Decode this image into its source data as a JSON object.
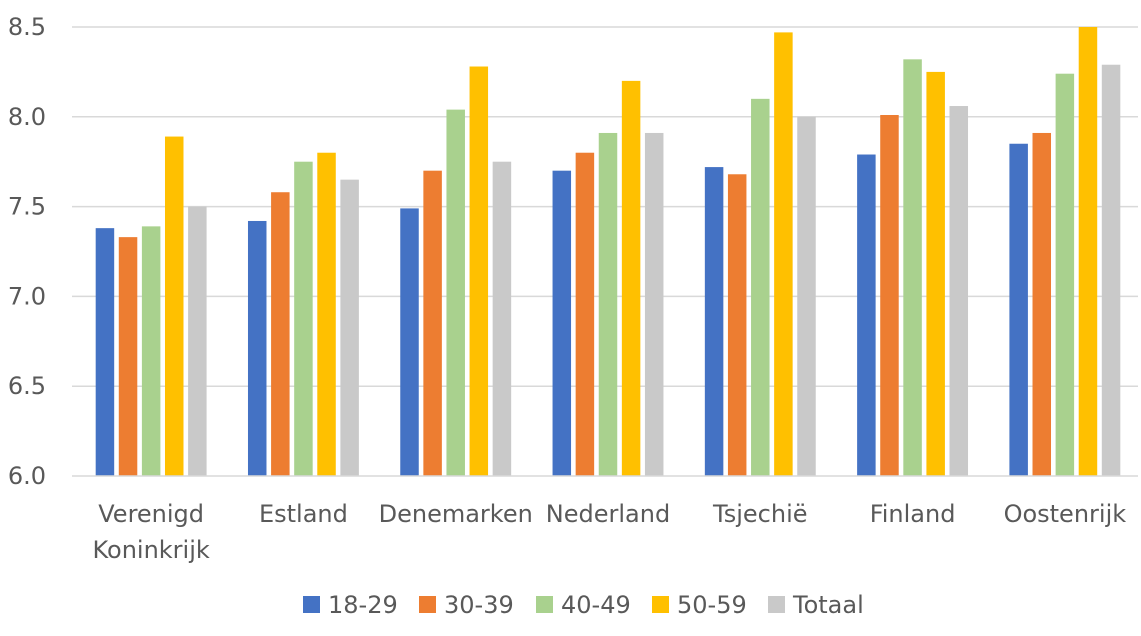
{
  "chart_data": {
    "type": "bar",
    "title": "",
    "xlabel": "",
    "ylabel": "",
    "ylim": [
      6.0,
      8.5
    ],
    "yticks": [
      "6.0",
      "6.5",
      "7.0",
      "7.5",
      "8.0",
      "8.5"
    ],
    "grid": true,
    "legend_position": "bottom",
    "categories": [
      [
        "Verenigd",
        "Koninkrijk"
      ],
      [
        "Estland"
      ],
      [
        "Denemarken"
      ],
      [
        "Nederland"
      ],
      [
        "Tsjechië"
      ],
      [
        "Finland"
      ],
      [
        "Oostenrijk"
      ]
    ],
    "series": [
      {
        "name": "18-29",
        "color": "#4472C4",
        "values": [
          7.38,
          7.42,
          7.49,
          7.7,
          7.72,
          7.79,
          7.85
        ]
      },
      {
        "name": "30-39",
        "color": "#ED7D31",
        "values": [
          7.33,
          7.58,
          7.7,
          7.8,
          7.68,
          8.01,
          7.91
        ]
      },
      {
        "name": "40-49",
        "color": "#A9D18E",
        "values": [
          7.39,
          7.75,
          8.04,
          7.91,
          8.1,
          8.32,
          8.24
        ]
      },
      {
        "name": "50-59",
        "color": "#FFC000",
        "values": [
          7.89,
          7.8,
          8.28,
          8.2,
          8.47,
          8.25,
          8.5
        ]
      },
      {
        "name": "Totaal",
        "color": "#C9C9C9",
        "values": [
          7.5,
          7.65,
          7.75,
          7.91,
          8.0,
          8.06,
          8.29
        ]
      }
    ]
  }
}
